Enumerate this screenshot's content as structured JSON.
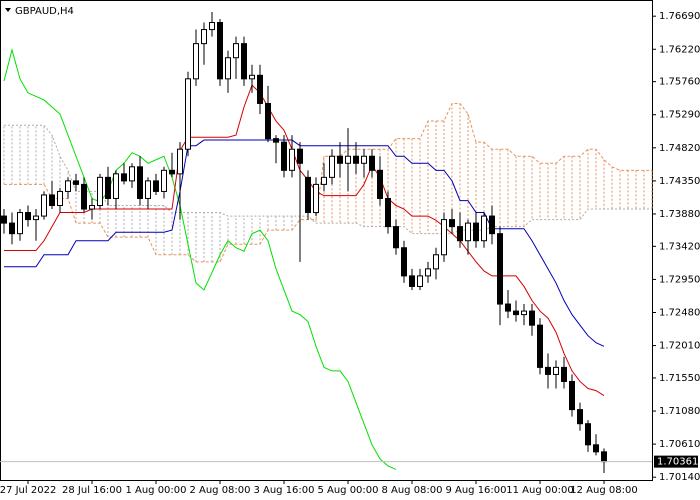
{
  "chart_data": {
    "type": "candlestick",
    "title": "GBPAUD,H4",
    "categories": [
      null,
      null,
      null,
      "27 Jul 2022",
      null,
      null,
      null,
      null,
      null,
      null,
      null,
      "28 Jul 16:00",
      null,
      null,
      null,
      null,
      null,
      null,
      null,
      "1 Aug 00:00",
      null,
      null,
      null,
      null,
      null,
      null,
      null,
      "2 Aug 08:00",
      null,
      null,
      null,
      null,
      null,
      null,
      null,
      "3 Aug 16:00",
      null,
      null,
      null,
      null,
      null,
      null,
      null,
      "5 Aug 00:00",
      null,
      null,
      null,
      null,
      null,
      null,
      null,
      "8 Aug 08:00",
      null,
      null,
      null,
      null,
      null,
      null,
      null,
      "9 Aug 16:00",
      null,
      null,
      null,
      null,
      null,
      null,
      null,
      "11 Aug 00:00",
      null,
      null,
      null,
      null,
      null,
      null,
      null,
      "12 Aug 08:00",
      null,
      null,
      null,
      null,
      null,
      null
    ],
    "open": [
      1.7385,
      1.7375,
      1.736,
      1.739,
      1.738,
      1.7385,
      1.7415,
      1.74,
      1.742,
      1.7435,
      1.743,
      1.7395,
      1.74,
      1.744,
      1.741,
      1.7445,
      1.7435,
      1.7455,
      1.741,
      1.7435,
      1.742,
      1.745,
      1.7445,
      1.748,
      1.758,
      1.763,
      1.765,
      1.766,
      1.758,
      1.761,
      1.763,
      1.758,
      1.7585,
      1.7545,
      1.7495,
      1.749,
      1.745,
      1.748,
      1.744,
      1.739,
      1.743,
      1.744,
      1.747,
      1.746,
      1.747,
      1.746,
      1.747,
      1.745,
      1.741,
      1.737,
      1.734,
      1.73,
      1.7285,
      1.73,
      1.731,
      1.733,
      1.738,
      1.737,
      1.735,
      1.7375,
      1.735,
      1.7385,
      1.736,
      1.726,
      1.725,
      1.7245,
      1.725,
      1.723,
      1.717,
      1.716,
      1.717,
      1.715,
      1.711,
      1.709,
      1.706,
      1.705,
      null,
      null,
      null,
      null,
      null,
      null
    ],
    "high": [
      1.7395,
      1.739,
      1.7395,
      1.74,
      1.7395,
      1.742,
      1.7435,
      1.7425,
      1.744,
      1.7445,
      1.744,
      1.741,
      1.7445,
      1.7455,
      1.745,
      1.746,
      1.746,
      1.747,
      1.744,
      1.7445,
      1.7455,
      1.7475,
      1.749,
      1.759,
      1.765,
      1.766,
      1.7675,
      1.7665,
      1.762,
      1.764,
      1.764,
      1.76,
      1.76,
      1.757,
      1.75,
      1.75,
      1.75,
      1.749,
      1.745,
      1.744,
      1.746,
      1.748,
      1.749,
      1.751,
      1.749,
      1.748,
      1.748,
      1.747,
      1.742,
      1.738,
      1.735,
      1.731,
      1.731,
      1.732,
      1.734,
      1.739,
      1.7395,
      1.739,
      1.738,
      1.739,
      1.739,
      1.74,
      1.737,
      1.728,
      1.7265,
      1.726,
      1.726,
      1.724,
      1.719,
      1.718,
      1.7185,
      1.716,
      1.712,
      1.7095,
      1.7075,
      1.7055,
      null,
      null,
      null,
      null,
      null,
      null
    ],
    "low": [
      1.736,
      1.7345,
      1.735,
      1.737,
      1.735,
      1.738,
      1.7395,
      1.739,
      1.741,
      1.742,
      1.739,
      1.738,
      1.7395,
      1.74,
      1.7395,
      1.743,
      1.7425,
      1.74,
      1.7395,
      1.7415,
      1.741,
      1.744,
      1.738,
      1.747,
      1.757,
      1.76,
      1.764,
      1.757,
      1.756,
      1.758,
      1.757,
      1.756,
      1.753,
      1.749,
      1.746,
      1.744,
      1.744,
      1.732,
      1.738,
      1.7385,
      1.742,
      1.743,
      1.744,
      1.742,
      1.7445,
      1.744,
      1.744,
      1.74,
      1.736,
      1.733,
      1.729,
      1.728,
      1.728,
      1.729,
      1.7295,
      1.732,
      1.736,
      1.734,
      1.733,
      1.734,
      1.734,
      1.7345,
      1.723,
      1.724,
      1.7235,
      1.723,
      1.7215,
      1.716,
      1.714,
      1.714,
      1.714,
      1.71,
      1.708,
      1.705,
      1.7045,
      1.702,
      null,
      null,
      null,
      null,
      null,
      null
    ],
    "close": [
      1.7375,
      1.736,
      1.739,
      1.738,
      1.7385,
      1.7415,
      1.74,
      1.742,
      1.7435,
      1.743,
      1.7395,
      1.74,
      1.744,
      1.741,
      1.7445,
      1.7435,
      1.7455,
      1.741,
      1.7435,
      1.742,
      1.745,
      1.7445,
      1.748,
      1.758,
      1.763,
      1.765,
      1.766,
      1.758,
      1.761,
      1.763,
      1.758,
      1.7585,
      1.7545,
      1.7495,
      1.749,
      1.745,
      1.748,
      1.746,
      1.739,
      1.743,
      1.744,
      1.747,
      1.746,
      1.747,
      1.746,
      1.747,
      1.745,
      1.741,
      1.737,
      1.734,
      1.73,
      1.7285,
      1.73,
      1.731,
      1.733,
      1.738,
      1.737,
      1.735,
      1.7375,
      1.735,
      1.7385,
      1.736,
      1.726,
      1.725,
      1.7245,
      1.725,
      1.723,
      1.717,
      1.716,
      1.717,
      1.715,
      1.711,
      1.709,
      1.706,
      1.705,
      1.70361,
      null,
      null,
      null,
      null,
      null,
      null
    ],
    "ichimoku": {
      "tenkan": {
        "color": "#d40000",
        "values": [
          1.7336,
          1.7336,
          1.7336,
          1.7336,
          1.7336,
          1.735,
          1.737,
          1.739,
          1.739,
          1.739,
          1.739,
          1.7395,
          1.7395,
          1.7395,
          1.7395,
          1.7395,
          1.7395,
          1.7395,
          1.7395,
          1.7395,
          1.7395,
          1.7395,
          1.7478,
          1.7497,
          1.7497,
          1.7497,
          1.7497,
          1.7497,
          1.7497,
          1.75,
          1.754,
          1.7571,
          1.756,
          1.754,
          1.752,
          1.7507,
          1.748,
          1.745,
          1.7436,
          1.742,
          1.7414,
          1.7414,
          1.7414,
          1.7414,
          1.7414,
          1.743,
          1.7457,
          1.744,
          1.741,
          1.74,
          1.7395,
          1.7385,
          1.7385,
          1.7385,
          1.7379,
          1.737,
          1.736,
          1.735,
          1.7335,
          1.732,
          1.7307,
          1.73,
          1.73,
          1.73,
          1.73,
          1.7285,
          1.7265,
          1.725,
          1.724,
          1.722,
          1.719,
          1.7165,
          1.715,
          1.714,
          1.7137,
          1.713,
          null,
          null,
          null,
          null,
          null,
          null
        ]
      },
      "kijun": {
        "color": "#0000b4",
        "values": [
          1.7313,
          1.7313,
          1.7313,
          1.7313,
          1.7313,
          1.733,
          1.733,
          1.733,
          1.733,
          1.735,
          1.735,
          1.735,
          1.735,
          1.735,
          1.7362,
          1.7362,
          1.7362,
          1.7362,
          1.7362,
          1.7362,
          1.7362,
          1.7365,
          1.742,
          1.7485,
          1.7485,
          1.7493,
          1.7493,
          1.7493,
          1.7493,
          1.7493,
          1.7493,
          1.7493,
          1.7493,
          1.7493,
          1.7493,
          1.7493,
          1.7493,
          1.7485,
          1.7485,
          1.7485,
          1.7485,
          1.7485,
          1.7485,
          1.7485,
          1.7485,
          1.7485,
          1.7485,
          1.7485,
          1.7485,
          1.747,
          1.747,
          1.746,
          1.746,
          1.746,
          1.745,
          1.745,
          1.7435,
          1.7407,
          1.7407,
          1.739,
          1.739,
          1.7367,
          1.7367,
          1.7367,
          1.7367,
          1.7367,
          1.735,
          1.733,
          1.731,
          1.729,
          1.7265,
          1.7245,
          1.723,
          1.7215,
          1.7205,
          1.72,
          null,
          null,
          null,
          null,
          null,
          null
        ]
      },
      "chikou": {
        "color": "#00e000",
        "values": [
          1.7577,
          1.7621,
          1.758,
          1.756,
          1.7555,
          1.755,
          1.754,
          1.753,
          1.75,
          1.747,
          1.744,
          1.741,
          1.7405,
          1.742,
          1.745,
          1.746,
          1.7475,
          1.747,
          1.746,
          1.7465,
          1.747,
          1.744,
          1.74,
          1.7345,
          1.729,
          1.728,
          1.7305,
          1.733,
          1.735,
          1.734,
          1.7335,
          1.736,
          1.7365,
          1.735,
          1.731,
          1.728,
          1.725,
          1.7245,
          1.7235,
          1.72,
          1.717,
          1.7165,
          1.7165,
          1.715,
          1.712,
          1.709,
          1.706,
          1.704,
          1.703,
          1.7025,
          null,
          null,
          null,
          null,
          null,
          null,
          null,
          null,
          null,
          null,
          null,
          null,
          null,
          null,
          null,
          null,
          null,
          null,
          null,
          null,
          null,
          null,
          null,
          null,
          null,
          null,
          null,
          null,
          null,
          null,
          null,
          null
        ]
      },
      "span_a": {
        "color": "#e8925a",
        "values": [
          1.743,
          1.743,
          1.743,
          1.743,
          1.743,
          1.743,
          1.741,
          1.741,
          1.741,
          1.7375,
          1.7375,
          1.7375,
          1.7375,
          1.7355,
          1.7355,
          1.7355,
          1.7355,
          1.7355,
          1.7355,
          1.733,
          1.733,
          1.733,
          1.733,
          1.733,
          1.732,
          1.732,
          1.732,
          1.732,
          1.7345,
          1.7345,
          1.7345,
          1.7345,
          1.7345,
          1.7365,
          1.7365,
          1.7365,
          1.7365,
          1.738,
          1.738,
          1.738,
          1.747,
          1.747,
          1.747,
          1.748,
          1.748,
          1.748,
          1.748,
          1.748,
          1.748,
          1.7495,
          1.7495,
          1.7495,
          1.7495,
          1.752,
          1.752,
          1.752,
          1.7545,
          1.7545,
          1.753,
          1.749,
          1.749,
          1.748,
          1.748,
          1.748,
          1.747,
          1.747,
          1.747,
          1.746,
          1.746,
          1.746,
          1.747,
          1.747,
          1.747,
          1.748,
          1.748,
          1.7465,
          1.7455,
          1.745,
          1.745,
          1.745,
          1.745,
          1.745
        ]
      },
      "span_b": {
        "color": "#b4a8a8",
        "values": [
          1.7514,
          1.7514,
          1.7514,
          1.7514,
          1.7514,
          1.7514,
          1.75,
          1.747,
          1.745,
          1.742,
          1.742,
          1.742,
          1.742,
          1.74,
          1.74,
          1.74,
          1.74,
          1.74,
          1.74,
          1.74,
          1.74,
          1.739,
          1.739,
          1.739,
          1.739,
          1.739,
          1.739,
          1.739,
          1.7385,
          1.7385,
          1.7385,
          1.7385,
          1.7385,
          1.7385,
          1.7385,
          1.7385,
          1.7385,
          1.7385,
          1.7385,
          1.7375,
          1.7375,
          1.7375,
          1.7375,
          1.7375,
          1.7375,
          1.737,
          1.737,
          1.737,
          1.737,
          1.737,
          1.737,
          1.736,
          1.736,
          1.736,
          1.736,
          1.736,
          1.736,
          1.7365,
          1.7365,
          1.7365,
          1.7365,
          1.737,
          1.737,
          1.737,
          1.737,
          1.737,
          1.738,
          1.738,
          1.738,
          1.738,
          1.738,
          1.738,
          1.738,
          1.7395,
          1.7395,
          1.7395,
          1.7395,
          1.7395,
          1.7395,
          1.7395,
          1.7395,
          1.7395
        ]
      }
    },
    "last_price": 1.70361,
    "ylim": [
      1.701,
      1.7692
    ],
    "yticks": [
      {
        "value": 1.7669,
        "label": "1.76690"
      },
      {
        "value": 1.7622,
        "label": "1.76220"
      },
      {
        "value": 1.7576,
        "label": "1.75760"
      },
      {
        "value": 1.7529,
        "label": "1.75290"
      },
      {
        "value": 1.7482,
        "label": "1.74820"
      },
      {
        "value": 1.7435,
        "label": "1.74350"
      },
      {
        "value": 1.7388,
        "label": "1.73880"
      },
      {
        "value": 1.7342,
        "label": "1.73420"
      },
      {
        "value": 1.7295,
        "label": "1.72950"
      },
      {
        "value": 1.7248,
        "label": "1.72480"
      },
      {
        "value": 1.7201,
        "label": "1.72010"
      },
      {
        "value": 1.7155,
        "label": "1.71550"
      },
      {
        "value": 1.7108,
        "label": "1.71080"
      },
      {
        "value": 1.7061,
        "label": "1.70610"
      },
      {
        "value": 1.7014,
        "label": "1.70140"
      }
    ],
    "grid": false
  }
}
